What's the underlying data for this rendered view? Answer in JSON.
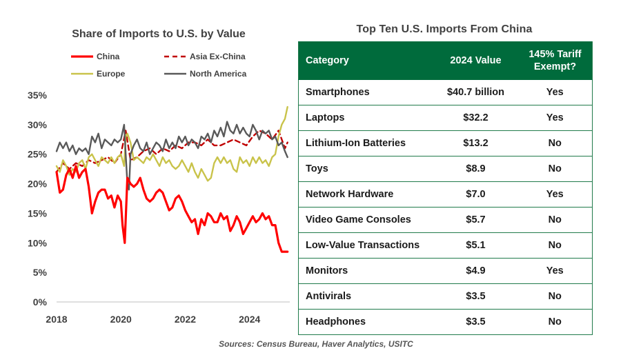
{
  "chart_data": {
    "type": "line",
    "title": "Share of Imports to U.S. by Value",
    "xlabel": "",
    "ylabel": "",
    "xlim": [
      2018,
      2025.25
    ],
    "ylim": [
      0,
      35
    ],
    "x_ticks": [
      2018,
      2020,
      2022,
      2024
    ],
    "y_ticks": [
      0,
      5,
      10,
      15,
      20,
      25,
      30,
      35
    ],
    "y_tick_suffix": "%",
    "legend_position": "top",
    "series": [
      {
        "name": "China",
        "color": "#ff0000",
        "dash": "solid",
        "x": [
          2018.0,
          2018.1,
          2018.2,
          2018.3,
          2018.4,
          2018.5,
          2018.6,
          2018.7,
          2018.8,
          2018.9,
          2019.0,
          2019.1,
          2019.2,
          2019.3,
          2019.4,
          2019.5,
          2019.6,
          2019.7,
          2019.8,
          2019.9,
          2020.0,
          2020.05,
          2020.12,
          2020.2,
          2020.3,
          2020.4,
          2020.5,
          2020.6,
          2020.7,
          2020.8,
          2020.9,
          2021.0,
          2021.1,
          2021.2,
          2021.3,
          2021.4,
          2021.5,
          2021.6,
          2021.7,
          2021.8,
          2021.9,
          2022.0,
          2022.1,
          2022.2,
          2022.3,
          2022.4,
          2022.5,
          2022.6,
          2022.7,
          2022.8,
          2022.9,
          2023.0,
          2023.1,
          2023.2,
          2023.3,
          2023.4,
          2023.5,
          2023.6,
          2023.7,
          2023.8,
          2023.9,
          2024.0,
          2024.1,
          2024.2,
          2024.3,
          2024.4,
          2024.5,
          2024.6,
          2024.7,
          2024.8,
          2024.9,
          2025.0,
          2025.1,
          2025.18
        ],
        "y": [
          22.0,
          18.5,
          19.0,
          21.5,
          22.5,
          21.0,
          23.0,
          21.0,
          22.0,
          22.5,
          19.5,
          15.0,
          17.0,
          18.5,
          19.0,
          19.0,
          17.5,
          18.0,
          16.0,
          18.0,
          17.0,
          13.0,
          10.0,
          21.0,
          20.0,
          19.5,
          20.0,
          21.0,
          19.0,
          17.5,
          17.0,
          17.5,
          18.5,
          19.0,
          18.5,
          17.0,
          15.5,
          16.0,
          17.5,
          18.0,
          17.0,
          15.5,
          14.5,
          13.5,
          14.0,
          11.5,
          14.0,
          13.0,
          15.0,
          14.5,
          13.5,
          13.5,
          15.0,
          14.0,
          14.5,
          12.0,
          13.0,
          14.5,
          13.5,
          11.5,
          12.5,
          13.5,
          14.5,
          13.5,
          14.0,
          15.0,
          14.0,
          14.5,
          13.0,
          13.0,
          10.0,
          8.5,
          8.5,
          8.5
        ]
      },
      {
        "name": "Asia Ex-China",
        "color": "#c00000",
        "dash": "dashed",
        "x": [
          2018.0,
          2018.2,
          2018.4,
          2018.6,
          2018.8,
          2019.0,
          2019.2,
          2019.4,
          2019.6,
          2019.8,
          2020.0,
          2020.15,
          2020.3,
          2020.5,
          2020.7,
          2020.9,
          2021.1,
          2021.3,
          2021.5,
          2021.7,
          2021.9,
          2022.1,
          2022.3,
          2022.5,
          2022.7,
          2022.9,
          2023.1,
          2023.3,
          2023.5,
          2023.7,
          2023.9,
          2024.1,
          2024.3,
          2024.5,
          2024.7,
          2024.9,
          2025.1,
          2025.18
        ],
        "y": [
          22.0,
          23.5,
          22.5,
          23.5,
          23.0,
          24.0,
          23.5,
          24.0,
          24.5,
          23.5,
          25.0,
          29.0,
          24.0,
          24.5,
          25.5,
          26.0,
          25.0,
          26.0,
          25.5,
          26.5,
          26.0,
          27.0,
          27.0,
          26.5,
          27.5,
          26.5,
          26.5,
          27.0,
          27.5,
          27.0,
          26.5,
          28.0,
          29.0,
          28.5,
          27.5,
          29.0,
          26.0,
          27.0
        ]
      },
      {
        "name": "Europe",
        "color": "#c9c34a",
        "dash": "solid",
        "x": [
          2018.0,
          2018.1,
          2018.2,
          2018.3,
          2018.4,
          2018.5,
          2018.6,
          2018.7,
          2018.8,
          2018.9,
          2019.0,
          2019.1,
          2019.2,
          2019.3,
          2019.4,
          2019.5,
          2019.6,
          2019.7,
          2019.8,
          2019.9,
          2020.0,
          2020.1,
          2020.15,
          2020.2,
          2020.3,
          2020.4,
          2020.5,
          2020.6,
          2020.7,
          2020.8,
          2020.9,
          2021.0,
          2021.1,
          2021.2,
          2021.3,
          2021.4,
          2021.5,
          2021.6,
          2021.7,
          2021.8,
          2021.9,
          2022.0,
          2022.1,
          2022.2,
          2022.3,
          2022.4,
          2022.5,
          2022.6,
          2022.7,
          2022.8,
          2022.9,
          2023.0,
          2023.1,
          2023.2,
          2023.3,
          2023.4,
          2023.5,
          2023.6,
          2023.7,
          2023.8,
          2023.9,
          2024.0,
          2024.1,
          2024.2,
          2024.3,
          2024.4,
          2024.5,
          2024.6,
          2024.7,
          2024.8,
          2024.9,
          2025.0,
          2025.1,
          2025.18
        ],
        "y": [
          23.0,
          22.0,
          24.0,
          23.0,
          21.5,
          22.5,
          22.0,
          23.5,
          24.0,
          22.5,
          24.5,
          25.0,
          24.0,
          23.0,
          24.5,
          24.0,
          23.5,
          24.5,
          23.5,
          24.5,
          25.0,
          23.0,
          28.0,
          28.5,
          27.0,
          24.0,
          24.5,
          24.0,
          23.5,
          24.5,
          24.0,
          25.0,
          24.0,
          23.0,
          24.5,
          23.5,
          24.0,
          23.0,
          22.5,
          23.0,
          24.0,
          23.0,
          22.0,
          23.5,
          22.0,
          21.0,
          22.5,
          21.5,
          20.5,
          21.0,
          23.5,
          24.5,
          23.5,
          24.5,
          23.5,
          24.0,
          22.5,
          22.0,
          24.5,
          23.5,
          24.0,
          23.0,
          24.5,
          23.5,
          24.5,
          23.5,
          24.0,
          23.0,
          24.5,
          25.0,
          28.0,
          30.0,
          31.0,
          33.0
        ]
      },
      {
        "name": "North America",
        "color": "#595959",
        "dash": "solid",
        "x": [
          2018.0,
          2018.1,
          2018.2,
          2018.3,
          2018.4,
          2018.5,
          2018.6,
          2018.7,
          2018.8,
          2018.9,
          2019.0,
          2019.1,
          2019.2,
          2019.3,
          2019.4,
          2019.5,
          2019.6,
          2019.7,
          2019.8,
          2019.9,
          2020.0,
          2020.1,
          2020.15,
          2020.2,
          2020.25,
          2020.3,
          2020.4,
          2020.5,
          2020.6,
          2020.7,
          2020.8,
          2020.9,
          2021.0,
          2021.1,
          2021.2,
          2021.3,
          2021.4,
          2021.5,
          2021.6,
          2021.7,
          2021.8,
          2021.9,
          2022.0,
          2022.1,
          2022.2,
          2022.3,
          2022.4,
          2022.5,
          2022.6,
          2022.7,
          2022.8,
          2022.9,
          2023.0,
          2023.1,
          2023.2,
          2023.3,
          2023.4,
          2023.5,
          2023.6,
          2023.7,
          2023.8,
          2023.9,
          2024.0,
          2024.1,
          2024.2,
          2024.3,
          2024.4,
          2024.5,
          2024.6,
          2024.7,
          2024.8,
          2024.9,
          2025.0,
          2025.1,
          2025.18
        ],
        "y": [
          25.5,
          27.0,
          26.0,
          27.0,
          25.5,
          26.5,
          25.0,
          26.0,
          25.5,
          26.0,
          25.0,
          28.0,
          27.0,
          28.5,
          26.0,
          27.5,
          27.0,
          26.5,
          27.5,
          27.0,
          27.5,
          30.0,
          25.0,
          20.0,
          19.0,
          25.0,
          26.5,
          27.5,
          26.0,
          25.5,
          27.0,
          25.0,
          26.0,
          27.0,
          26.5,
          25.5,
          27.5,
          26.0,
          27.0,
          26.0,
          28.0,
          27.0,
          28.0,
          26.5,
          27.5,
          27.0,
          26.0,
          28.0,
          27.5,
          28.5,
          27.0,
          29.0,
          28.0,
          29.5,
          28.0,
          30.5,
          29.0,
          28.5,
          30.0,
          28.5,
          29.5,
          28.5,
          28.0,
          30.0,
          29.0,
          27.5,
          29.0,
          28.5,
          29.0,
          27.5,
          28.0,
          26.5,
          27.0,
          25.5,
          24.5
        ]
      }
    ]
  },
  "table": {
    "title": "Top Ten U.S. Imports  From China",
    "headers": {
      "category": "Category",
      "value": "2024 Value",
      "exempt": "145% Tariff Exempt?"
    },
    "rows": [
      {
        "category": "Smartphones",
        "value": "$40.7 billion",
        "exempt": "Yes"
      },
      {
        "category": "Laptops",
        "value": "$32.2",
        "exempt": "Yes"
      },
      {
        "category": "Lithium-Ion Batteries",
        "value": "$13.2",
        "exempt": "No"
      },
      {
        "category": "Toys",
        "value": "$8.9",
        "exempt": "No"
      },
      {
        "category": "Network Hardware",
        "value": "$7.0",
        "exempt": "Yes"
      },
      {
        "category": "Video Game Consoles",
        "value": "$5.7",
        "exempt": "No"
      },
      {
        "category": "Low-Value Transactions",
        "value": "$5.1",
        "exempt": "No"
      },
      {
        "category": "Monitors",
        "value": "$4.9",
        "exempt": "Yes"
      },
      {
        "category": "Antivirals",
        "value": "$3.5",
        "exempt": "No"
      },
      {
        "category": "Headphones",
        "value": "$3.5",
        "exempt": "No"
      }
    ],
    "header_color": "#006b3c"
  },
  "source": "Sources: Census Bureau, Haver Analytics, USITC"
}
